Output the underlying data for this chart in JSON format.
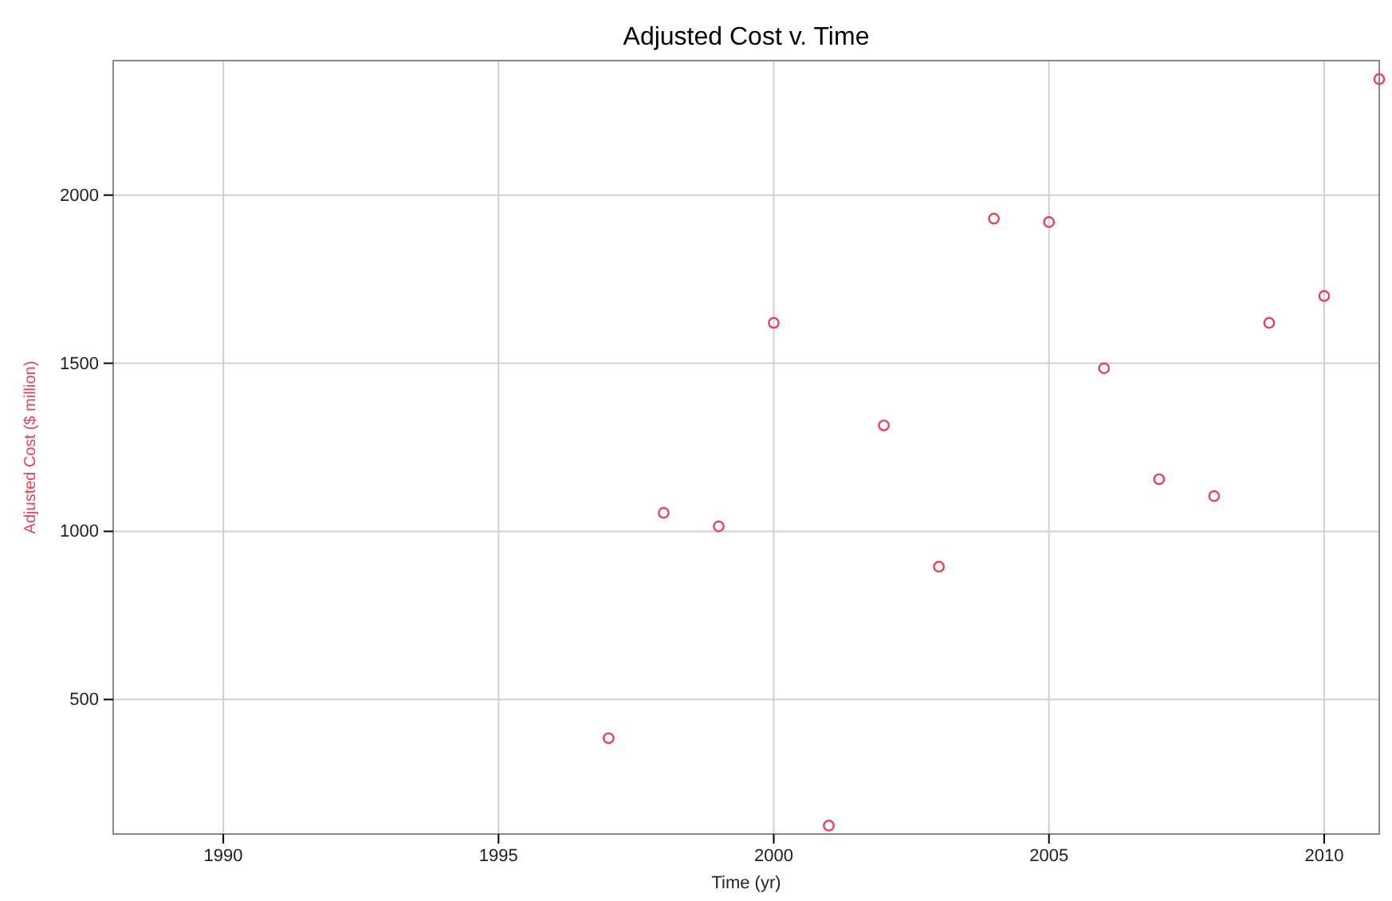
{
  "chart_data": {
    "type": "scatter",
    "title": "Adjusted Cost v. Time",
    "xlabel": "Time (yr)",
    "ylabel": "Adjusted Cost ($ million)",
    "x": [
      1997,
      1998,
      1999,
      2000,
      2001,
      2002,
      2003,
      2004,
      2005,
      2006,
      2007,
      2008,
      2009,
      2010,
      2011
    ],
    "series": [
      {
        "color": "#e8405a",
        "values": [
          385,
          1055,
          1015,
          1620,
          125,
          1315,
          895,
          1930,
          1920,
          1485,
          1155,
          1105,
          1620,
          1700,
          2345
        ]
      }
    ],
    "xlim": [
      1988,
      2011
    ],
    "xticks": [
      1990,
      1995,
      2000,
      2005,
      2010
    ],
    "ylim": [
      100,
      2400
    ],
    "yticks": [
      500,
      1000,
      1500,
      2000
    ],
    "grid": true,
    "marker": "circle"
  }
}
